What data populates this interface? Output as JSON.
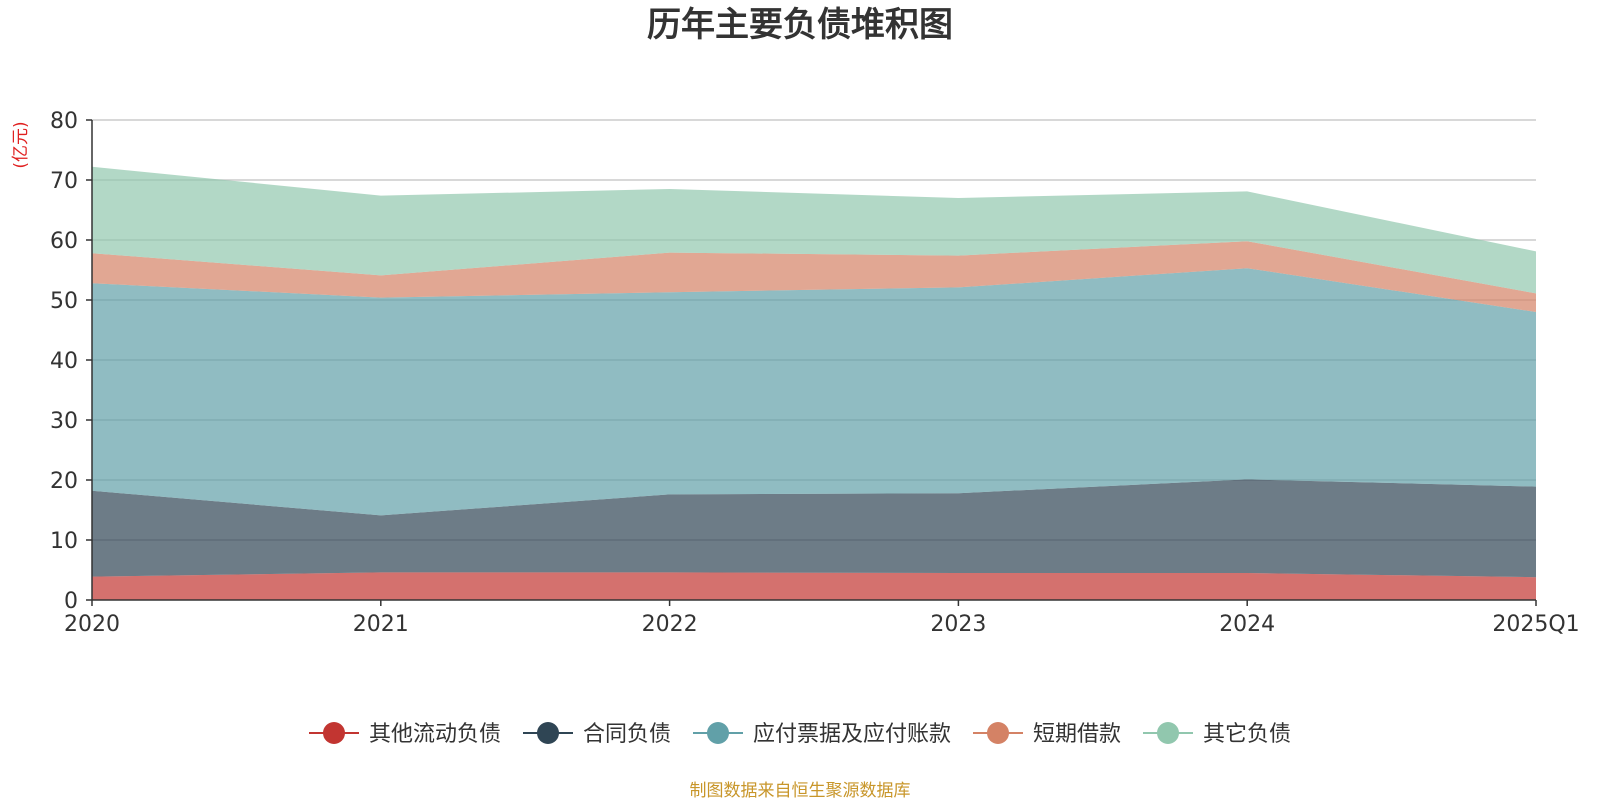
{
  "chart_data": {
    "type": "area",
    "stacked": true,
    "title": "历年主要负债堆积图",
    "y_unit": "(亿元)",
    "ylim": [
      0,
      80
    ],
    "y_ticks": [
      "0",
      "10",
      "20",
      "30",
      "40",
      "50",
      "60",
      "70",
      "80"
    ],
    "categories": [
      "2020",
      "2021",
      "2022",
      "2023",
      "2024",
      "2025Q1"
    ],
    "grid": true,
    "legend_position": "bottom",
    "series": [
      {
        "name": "其他流动负债",
        "color": "#c23531",
        "values": [
          3.9,
          4.6,
          4.6,
          4.5,
          4.5,
          3.8
        ]
      },
      {
        "name": "合同负债",
        "color": "#2f4554",
        "values": [
          14.3,
          9.5,
          13.0,
          13.3,
          15.6,
          15.1
        ]
      },
      {
        "name": "应付票据及应付账款",
        "color": "#61a0a8",
        "values": [
          34.6,
          36.3,
          33.7,
          34.3,
          35.2,
          29.1
        ]
      },
      {
        "name": "短期借款",
        "color": "#d48265",
        "values": [
          5.0,
          3.7,
          6.6,
          5.3,
          4.5,
          3.1
        ]
      },
      {
        "name": "其它负债",
        "color": "#91c7ae",
        "values": [
          14.4,
          13.3,
          10.6,
          9.6,
          8.3,
          7.0
        ]
      }
    ],
    "source": "制图数据来自恒生聚源数据库"
  }
}
